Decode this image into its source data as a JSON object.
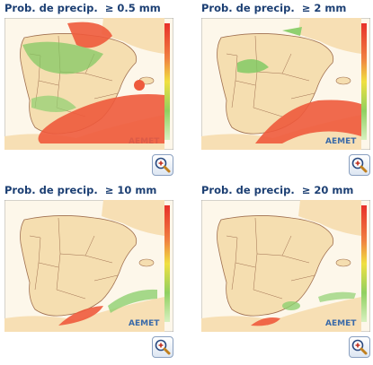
{
  "panels": [
    {
      "title": "Prob. de precip.  ≥ 0.5 mm"
    },
    {
      "title": "Prob. de precip.  ≥ 2 mm"
    },
    {
      "title": "Prob. de precip.  ≥ 10 mm"
    },
    {
      "title": "Prob. de precip.  ≥ 20 mm"
    }
  ]
}
